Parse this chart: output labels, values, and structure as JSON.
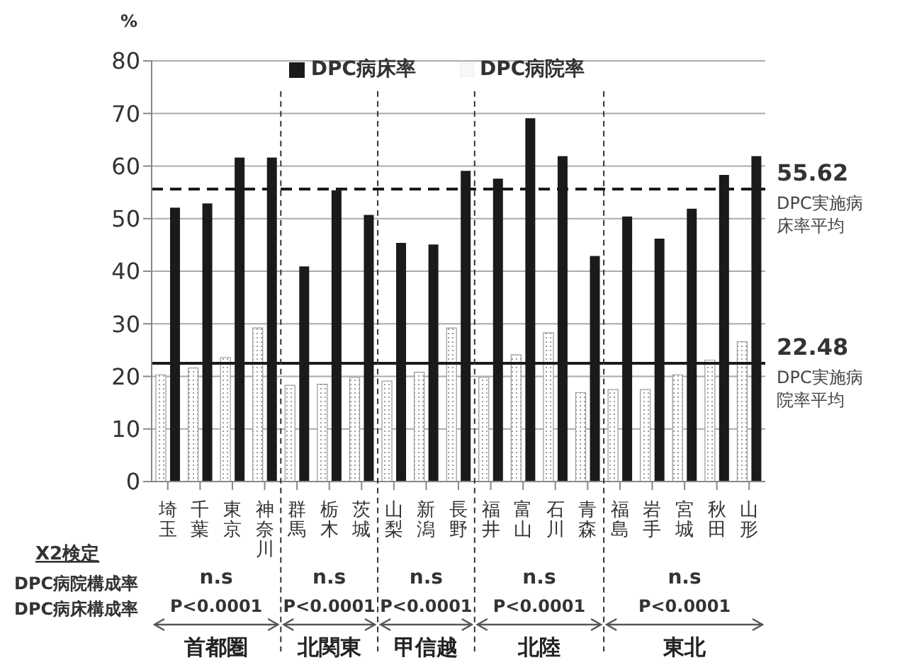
{
  "chart_data": {
    "type": "bar",
    "ylabel": "%",
    "categories": [
      "埼玉",
      "千葉",
      "東京",
      "神奈川",
      "群馬",
      "栃木",
      "茨城",
      "山梨",
      "新潟",
      "長野",
      "福井",
      "富山",
      "石川",
      "青森",
      "福島",
      "岩手",
      "宮城",
      "秋田",
      "山形"
    ],
    "series": [
      {
        "name": "DPC病院率",
        "color": "#999999",
        "values": [
          20.3,
          21.6,
          23.6,
          29.2,
          18.3,
          18.5,
          19.8,
          19.1,
          20.8,
          29.2,
          19.8,
          24.1,
          28.3,
          16.9,
          17.5,
          17.5,
          20.3,
          23.1,
          26.6
        ]
      },
      {
        "name": "DPC病床率",
        "color": "#1a1a1a",
        "values": [
          52.1,
          52.9,
          61.6,
          61.6,
          40.9,
          55.4,
          50.7,
          45.4,
          45.1,
          59.1,
          57.6,
          69.1,
          61.9,
          42.9,
          50.4,
          46.2,
          51.9,
          58.3,
          61.9
        ]
      }
    ],
    "ylim": [
      0,
      80
    ],
    "yticks": [
      0,
      10,
      20,
      30,
      40,
      50,
      60,
      70,
      80
    ],
    "grid": "y",
    "legend": "top",
    "ref_lines": [
      {
        "axis": "y",
        "value": 55.62,
        "label": "55.62",
        "line_style": "dashed",
        "color": "#1a1a1a"
      },
      {
        "axis": "y",
        "value": 22.48,
        "label": "22.48",
        "line_style": "solid",
        "color": "#1a1a1a"
      }
    ],
    "annotations": [
      "DPC実施病床率平均",
      "DPC実施病院率平均",
      "X2検定",
      "DPC病院構成率",
      "DPC病床構成率",
      "n.s",
      "P<0.0001",
      "首都圏",
      "n.s",
      "P<0.0001",
      "北関東",
      "n.s",
      "P<0.0001",
      "甲信越",
      "n.s",
      "P<0.0001",
      "北陸",
      "n.s",
      "P<0.0001",
      "東北"
    ]
  }
}
